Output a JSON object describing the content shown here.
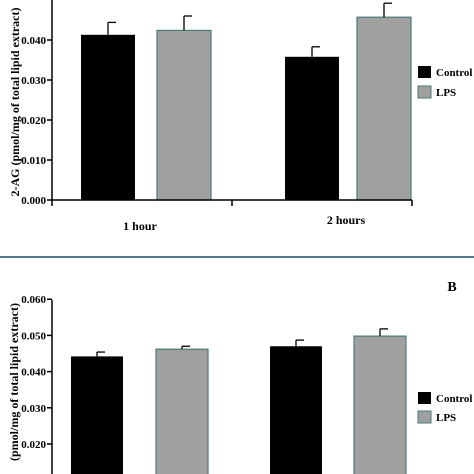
{
  "colors": {
    "control": "#000000",
    "lps": "#a0a0a0",
    "lps_stroke": "#4a7a7a",
    "axis": "#000000",
    "separator": "#1a4d6a"
  },
  "chart_data": [
    {
      "type": "bar",
      "panel_label": "",
      "ylabel": "2-AG (pmol/mg of total lipid extract)",
      "categories": [
        "1 hour",
        "2 hours"
      ],
      "ylim": [
        0,
        0.05
      ],
      "yticks": [
        "0.000",
        "0.010",
        "0.020",
        "0.030",
        "0.040"
      ],
      "ytick_values": [
        0,
        0.01,
        0.02,
        0.03,
        0.04
      ],
      "series": [
        {
          "name": "Control",
          "color": "#000000",
          "values": [
            0.0413,
            0.0358
          ],
          "errors": [
            0.0031,
            0.0025
          ]
        },
        {
          "name": "LPS",
          "color": "#a0a0a0",
          "values": [
            0.0424,
            0.0457
          ],
          "errors": [
            0.0036,
            0.0035
          ]
        }
      ],
      "legend_placement": "right",
      "grid": false
    },
    {
      "type": "bar",
      "panel_label": "B",
      "ylabel": "(pmol/mg of total lipid extract)",
      "categories": [
        "",
        ""
      ],
      "ylim": [
        0,
        0.06
      ],
      "yticks": [
        "0.020",
        "0.030",
        "0.040",
        "0.050",
        "0.060"
      ],
      "ytick_values": [
        0.02,
        0.03,
        0.04,
        0.05,
        0.06
      ],
      "series": [
        {
          "name": "Control",
          "color": "#000000",
          "values": [
            0.0442,
            0.047
          ],
          "errors": [
            0.0012,
            0.0017
          ]
        },
        {
          "name": "LPS",
          "color": "#a0a0a0",
          "values": [
            0.0462,
            0.0498
          ],
          "errors": [
            0.0008,
            0.002
          ]
        }
      ],
      "legend_placement": "right",
      "grid": false
    }
  ]
}
